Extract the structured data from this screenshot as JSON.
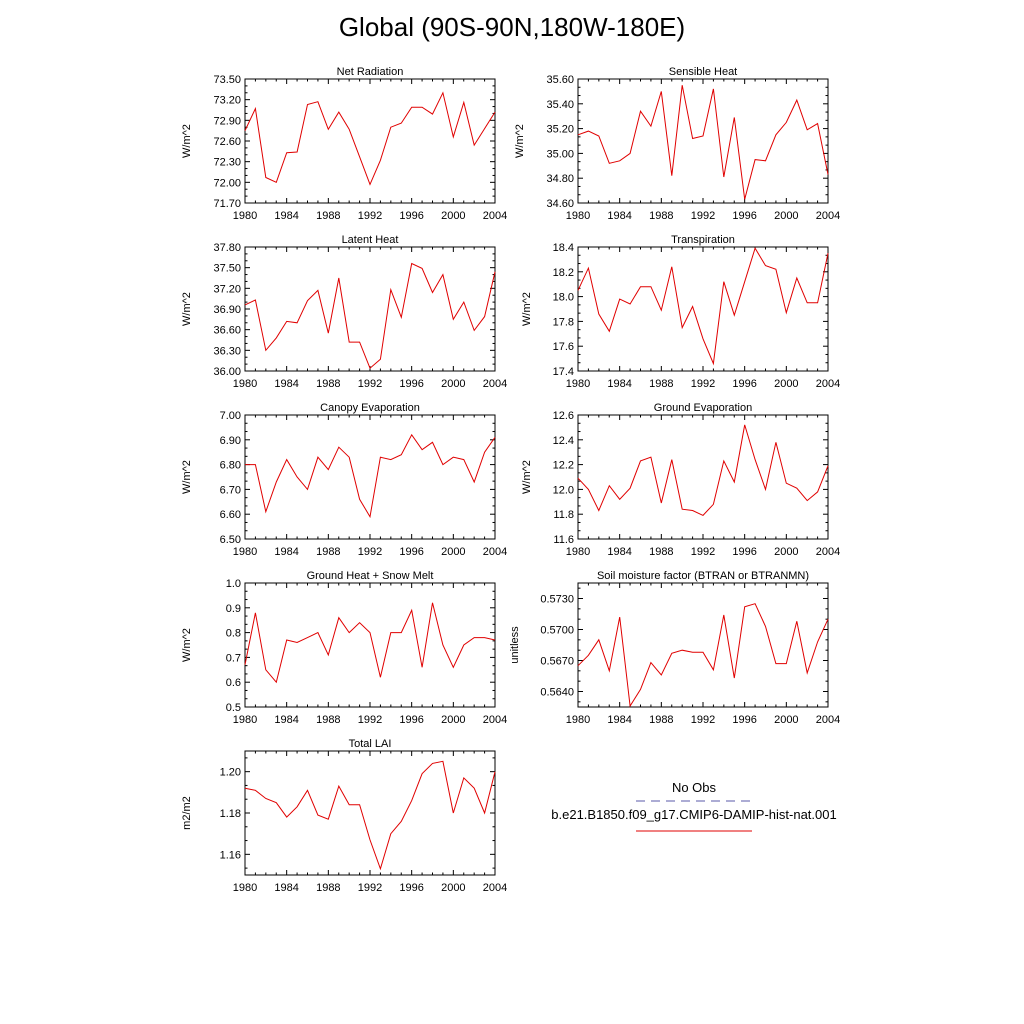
{
  "page": {
    "title": "Global (90S-90N,180W-180E)"
  },
  "legend": {
    "obs_label": "No Obs",
    "model_label": "b.e21.B1850.f09_g17.CMIP6-DAMIP-hist-nat.001",
    "obs_color": "#5a5aa8",
    "model_color": "#e00000"
  },
  "colors": {
    "series": "#e00000",
    "axis": "#000000"
  },
  "chart_data": [
    {
      "type": "line",
      "title": "Net Radiation",
      "ylabel": "W/m^2",
      "xlim": [
        1980,
        2004
      ],
      "ylim": [
        71.7,
        73.5
      ],
      "xticks": [
        1980,
        1984,
        1988,
        1992,
        1996,
        2000,
        2004
      ],
      "yticks": [
        71.7,
        72.0,
        72.3,
        72.6,
        72.9,
        73.2,
        73.5
      ],
      "ydecimals": 2,
      "x": [
        1980,
        1981,
        1982,
        1983,
        1984,
        1985,
        1986,
        1987,
        1988,
        1989,
        1990,
        1991,
        1992,
        1993,
        1994,
        1995,
        1996,
        1997,
        1998,
        1999,
        2000,
        2001,
        2002,
        2003,
        2004
      ],
      "series": [
        {
          "values": [
            72.75,
            73.07,
            72.07,
            72.0,
            72.43,
            72.44,
            73.13,
            73.17,
            72.77,
            73.02,
            72.77,
            72.37,
            71.97,
            72.32,
            72.8,
            72.86,
            73.09,
            73.09,
            72.99,
            73.3,
            72.66,
            73.16,
            72.54,
            72.78,
            73.02
          ]
        }
      ]
    },
    {
      "type": "line",
      "title": "Sensible Heat",
      "ylabel": "W/m^2",
      "xlim": [
        1980,
        2004
      ],
      "ylim": [
        34.6,
        35.6
      ],
      "xticks": [
        1980,
        1984,
        1988,
        1992,
        1996,
        2000,
        2004
      ],
      "yticks": [
        34.6,
        34.8,
        35.0,
        35.2,
        35.4,
        35.6
      ],
      "ydecimals": 2,
      "x": [
        1980,
        1981,
        1982,
        1983,
        1984,
        1985,
        1986,
        1987,
        1988,
        1989,
        1990,
        1991,
        1992,
        1993,
        1994,
        1995,
        1996,
        1997,
        1998,
        1999,
        2000,
        2001,
        2002,
        2003,
        2004
      ],
      "series": [
        {
          "values": [
            35.15,
            35.18,
            35.14,
            34.92,
            34.94,
            35.0,
            35.34,
            35.22,
            35.5,
            34.82,
            35.55,
            35.12,
            35.14,
            35.52,
            34.81,
            35.29,
            34.63,
            34.95,
            34.94,
            35.15,
            35.25,
            35.43,
            35.19,
            35.24,
            34.83
          ]
        }
      ]
    },
    {
      "type": "line",
      "title": "Latent Heat",
      "ylabel": "W/m^2",
      "xlim": [
        1980,
        2004
      ],
      "ylim": [
        36.0,
        37.8
      ],
      "xticks": [
        1980,
        1984,
        1988,
        1992,
        1996,
        2000,
        2004
      ],
      "yticks": [
        36.0,
        36.3,
        36.6,
        36.9,
        37.2,
        37.5,
        37.8
      ],
      "ydecimals": 2,
      "x": [
        1980,
        1981,
        1982,
        1983,
        1984,
        1985,
        1986,
        1987,
        1988,
        1989,
        1990,
        1991,
        1992,
        1993,
        1994,
        1995,
        1996,
        1997,
        1998,
        1999,
        2000,
        2001,
        2002,
        2003,
        2004
      ],
      "series": [
        {
          "values": [
            36.96,
            37.03,
            36.3,
            36.48,
            36.72,
            36.7,
            37.02,
            37.17,
            36.55,
            37.35,
            36.42,
            36.42,
            36.04,
            36.17,
            37.18,
            36.78,
            37.56,
            37.49,
            37.14,
            37.4,
            36.75,
            37.0,
            36.59,
            36.79,
            37.44
          ]
        }
      ]
    },
    {
      "type": "line",
      "title": "Transpiration",
      "ylabel": "W/m^2",
      "xlim": [
        1980,
        2004
      ],
      "ylim": [
        17.4,
        18.4
      ],
      "xticks": [
        1980,
        1984,
        1988,
        1992,
        1996,
        2000,
        2004
      ],
      "yticks": [
        17.4,
        17.6,
        17.8,
        18.0,
        18.2,
        18.4
      ],
      "ydecimals": 1,
      "x": [
        1980,
        1981,
        1982,
        1983,
        1984,
        1985,
        1986,
        1987,
        1988,
        1989,
        1990,
        1991,
        1992,
        1993,
        1994,
        1995,
        1996,
        1997,
        1998,
        1999,
        2000,
        2001,
        2002,
        2003,
        2004
      ],
      "series": [
        {
          "values": [
            18.05,
            18.23,
            17.86,
            17.72,
            17.98,
            17.94,
            18.08,
            18.08,
            17.89,
            18.24,
            17.75,
            17.92,
            17.66,
            17.46,
            18.12,
            17.85,
            18.12,
            18.39,
            18.25,
            18.22,
            17.87,
            18.15,
            17.95,
            17.95,
            18.35
          ]
        }
      ]
    },
    {
      "type": "line",
      "title": "Canopy Evaporation",
      "ylabel": "W/m^2",
      "xlim": [
        1980,
        2004
      ],
      "ylim": [
        6.5,
        7.0
      ],
      "xticks": [
        1980,
        1984,
        1988,
        1992,
        1996,
        2000,
        2004
      ],
      "yticks": [
        6.5,
        6.6,
        6.7,
        6.8,
        6.9,
        7.0
      ],
      "ydecimals": 2,
      "x": [
        1980,
        1981,
        1982,
        1983,
        1984,
        1985,
        1986,
        1987,
        1988,
        1989,
        1990,
        1991,
        1992,
        1993,
        1994,
        1995,
        1996,
        1997,
        1998,
        1999,
        2000,
        2001,
        2002,
        2003,
        2004
      ],
      "series": [
        {
          "values": [
            6.8,
            6.8,
            6.61,
            6.73,
            6.82,
            6.75,
            6.7,
            6.83,
            6.78,
            6.87,
            6.83,
            6.66,
            6.59,
            6.83,
            6.82,
            6.84,
            6.92,
            6.86,
            6.89,
            6.8,
            6.83,
            6.82,
            6.73,
            6.85,
            6.91
          ]
        }
      ]
    },
    {
      "type": "line",
      "title": "Ground Evaporation",
      "ylabel": "W/m^2",
      "xlim": [
        1980,
        2004
      ],
      "ylim": [
        11.6,
        12.6
      ],
      "xticks": [
        1980,
        1984,
        1988,
        1992,
        1996,
        2000,
        2004
      ],
      "yticks": [
        11.6,
        11.8,
        12.0,
        12.2,
        12.4,
        12.6
      ],
      "ydecimals": 1,
      "x": [
        1980,
        1981,
        1982,
        1983,
        1984,
        1985,
        1986,
        1987,
        1988,
        1989,
        1990,
        1991,
        1992,
        1993,
        1994,
        1995,
        1996,
        1997,
        1998,
        1999,
        2000,
        2001,
        2002,
        2003,
        2004
      ],
      "series": [
        {
          "values": [
            12.09,
            12.0,
            11.83,
            12.03,
            11.92,
            12.01,
            12.23,
            12.26,
            11.89,
            12.24,
            11.84,
            11.83,
            11.79,
            11.88,
            12.23,
            12.06,
            12.52,
            12.24,
            12.0,
            12.38,
            12.05,
            12.01,
            11.91,
            11.98,
            12.19
          ]
        }
      ]
    },
    {
      "type": "line",
      "title": "Ground Heat + Snow Melt",
      "ylabel": "W/m^2",
      "xlim": [
        1980,
        2004
      ],
      "ylim": [
        0.5,
        1.0
      ],
      "xticks": [
        1980,
        1984,
        1988,
        1992,
        1996,
        2000,
        2004
      ],
      "yticks": [
        0.5,
        0.6,
        0.7,
        0.8,
        0.9,
        1.0
      ],
      "ydecimals": 1,
      "x": [
        1980,
        1981,
        1982,
        1983,
        1984,
        1985,
        1986,
        1987,
        1988,
        1989,
        1990,
        1991,
        1992,
        1993,
        1994,
        1995,
        1996,
        1997,
        1998,
        1999,
        2000,
        2001,
        2002,
        2003,
        2004
      ],
      "series": [
        {
          "values": [
            0.67,
            0.88,
            0.65,
            0.6,
            0.77,
            0.76,
            0.78,
            0.8,
            0.71,
            0.86,
            0.8,
            0.84,
            0.8,
            0.62,
            0.8,
            0.8,
            0.89,
            0.66,
            0.92,
            0.75,
            0.66,
            0.75,
            0.78,
            0.78,
            0.77
          ]
        }
      ]
    },
    {
      "type": "line",
      "title": "Soil moisture factor (BTRAN or BTRANMN)",
      "ylabel": "unitless",
      "xlim": [
        1980,
        2004
      ],
      "ylim": [
        0.5625,
        0.5745
      ],
      "xticks": [
        1980,
        1984,
        1988,
        1992,
        1996,
        2000,
        2004
      ],
      "yticks": [
        0.564,
        0.567,
        0.57,
        0.573
      ],
      "ydecimals": 4,
      "x": [
        1980,
        1981,
        1982,
        1983,
        1984,
        1985,
        1986,
        1987,
        1988,
        1989,
        1990,
        1991,
        1992,
        1993,
        1994,
        1995,
        1996,
        1997,
        1998,
        1999,
        2000,
        2001,
        2002,
        2003,
        2004
      ],
      "series": [
        {
          "values": [
            0.5665,
            0.5675,
            0.569,
            0.566,
            0.5712,
            0.5626,
            0.5642,
            0.5668,
            0.5656,
            0.5677,
            0.568,
            0.5678,
            0.5678,
            0.5661,
            0.5714,
            0.5653,
            0.5722,
            0.5725,
            0.5703,
            0.5667,
            0.5667,
            0.5708,
            0.5658,
            0.5688,
            0.571
          ]
        }
      ]
    },
    {
      "type": "line",
      "title": "Total LAI",
      "ylabel": "m2/m2",
      "xlim": [
        1980,
        2004
      ],
      "ylim": [
        1.15,
        1.21
      ],
      "xticks": [
        1980,
        1984,
        1988,
        1992,
        1996,
        2000,
        2004
      ],
      "yticks": [
        1.16,
        1.18,
        1.2
      ],
      "ydecimals": 2,
      "x": [
        1980,
        1981,
        1982,
        1983,
        1984,
        1985,
        1986,
        1987,
        1988,
        1989,
        1990,
        1991,
        1992,
        1993,
        1994,
        1995,
        1996,
        1997,
        1998,
        1999,
        2000,
        2001,
        2002,
        2003,
        2004
      ],
      "series": [
        {
          "values": [
            1.192,
            1.191,
            1.187,
            1.185,
            1.178,
            1.183,
            1.191,
            1.179,
            1.177,
            1.193,
            1.184,
            1.184,
            1.167,
            1.153,
            1.17,
            1.176,
            1.186,
            1.199,
            1.204,
            1.205,
            1.18,
            1.197,
            1.192,
            1.18,
            1.2
          ]
        }
      ]
    }
  ]
}
